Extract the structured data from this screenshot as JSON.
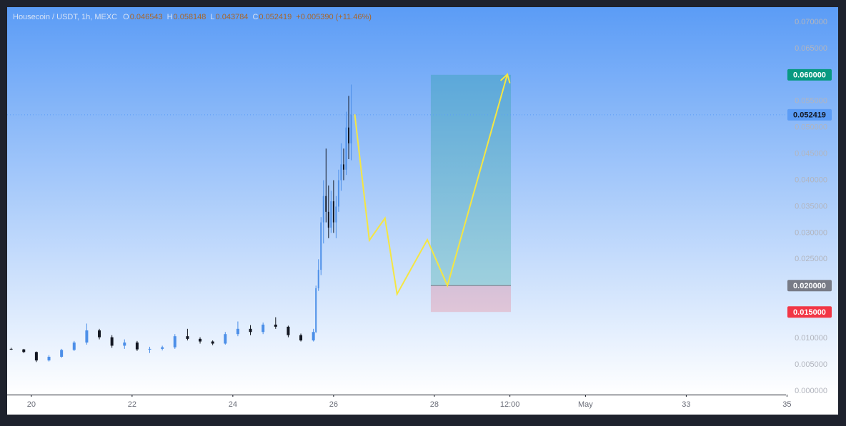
{
  "chart_data": {
    "type": "candlestick",
    "header": {
      "symbol": "Housecoin / USDT, 1h, MEXC",
      "fields": [
        {
          "key": "O",
          "value": "0.046543"
        },
        {
          "key": "H",
          "value": "0.058148"
        },
        {
          "key": "L",
          "value": "0.043784"
        },
        {
          "key": "C",
          "value": "0.052419"
        }
      ],
      "change": "+0.005390 (+11.46%)"
    },
    "x": [
      19.6,
      19.85,
      20.1,
      20.35,
      20.6,
      20.85,
      21.1,
      21.35,
      21.6,
      21.85,
      22.1,
      22.35,
      22.6,
      22.85,
      23.1,
      23.35,
      23.6,
      23.85,
      24.1,
      24.35,
      24.6,
      24.85,
      25.1,
      25.35,
      25.6,
      25.65,
      25.7,
      25.75,
      25.8,
      25.85,
      25.9,
      25.95,
      26.0,
      26.05,
      26.1,
      26.15,
      26.2,
      26.25,
      26.3,
      26.35
    ],
    "open": [
      0.008,
      0.0079,
      0.0074,
      0.0058,
      0.0065,
      0.0078,
      0.0092,
      0.0115,
      0.0102,
      0.0086,
      0.0092,
      0.0079,
      0.008,
      0.0083,
      0.0104,
      0.0099,
      0.0094,
      0.009,
      0.0108,
      0.0118,
      0.0112,
      0.0126,
      0.0122,
      0.0106,
      0.0096,
      0.0112,
      0.0195,
      0.023,
      0.032,
      0.037,
      0.034,
      0.031,
      0.036,
      0.032,
      0.035,
      0.04,
      0.043,
      0.042,
      0.05,
      0.047
    ],
    "high": [
      0.0082,
      0.008,
      0.0075,
      0.0068,
      0.008,
      0.0095,
      0.0128,
      0.0118,
      0.0106,
      0.0098,
      0.0095,
      0.0084,
      0.0086,
      0.0108,
      0.0118,
      0.0102,
      0.0096,
      0.0112,
      0.0132,
      0.0125,
      0.013,
      0.014,
      0.0124,
      0.0109,
      0.0118,
      0.02,
      0.025,
      0.033,
      0.04,
      0.046,
      0.039,
      0.038,
      0.04,
      0.037,
      0.042,
      0.047,
      0.046,
      0.053,
      0.056,
      0.058148
    ],
    "low": [
      0.0078,
      0.0072,
      0.0055,
      0.0056,
      0.0063,
      0.0076,
      0.0088,
      0.0098,
      0.0082,
      0.008,
      0.0076,
      0.0072,
      0.0077,
      0.008,
      0.0096,
      0.009,
      0.0087,
      0.0088,
      0.0104,
      0.0106,
      0.0108,
      0.0118,
      0.0102,
      0.0094,
      0.0094,
      0.011,
      0.019,
      0.022,
      0.028,
      0.032,
      0.029,
      0.03,
      0.03,
      0.029,
      0.034,
      0.038,
      0.04,
      0.041,
      0.044,
      0.043784
    ],
    "close": [
      0.0079,
      0.0074,
      0.0058,
      0.0065,
      0.0078,
      0.0092,
      0.0115,
      0.0102,
      0.0086,
      0.0092,
      0.0079,
      0.008,
      0.0083,
      0.0104,
      0.0099,
      0.0094,
      0.009,
      0.0108,
      0.0118,
      0.0112,
      0.0126,
      0.0122,
      0.0106,
      0.0096,
      0.0112,
      0.0195,
      0.023,
      0.032,
      0.037,
      0.034,
      0.031,
      0.036,
      0.032,
      0.035,
      0.04,
      0.043,
      0.042,
      0.05,
      0.047,
      0.052419
    ],
    "up_color": "#4c8fe8",
    "down_color": "#131722",
    "xlim": [
      19.52,
      34.98
    ],
    "ylim": [
      -0.00068,
      0.07284
    ],
    "xticks": [
      20,
      22,
      24,
      26,
      28,
      {
        "value": 29.5,
        "label": "12:00"
      },
      {
        "value": 31,
        "label": "May"
      },
      33,
      35
    ],
    "yticks": [
      {
        "value": 0,
        "label": "0.000000"
      },
      {
        "value": 0.005,
        "label": "0.005000"
      },
      {
        "value": 0.01,
        "label": "0.010000"
      },
      {
        "value": 0.015,
        "label": "0.015000"
      },
      {
        "value": 0.02,
        "label": "0.020000"
      },
      {
        "value": 0.025,
        "label": "0.025000"
      },
      {
        "value": 0.03,
        "label": "0.030000"
      },
      {
        "value": 0.035,
        "label": "0.035000"
      },
      {
        "value": 0.04,
        "label": "0.040000"
      },
      {
        "value": 0.045,
        "label": "0.045000"
      },
      {
        "value": 0.05,
        "label": "0.050000"
      },
      {
        "value": 0.055,
        "label": "0.055000"
      },
      {
        "value": 0.06,
        "label": "0.060000"
      },
      {
        "value": 0.065,
        "label": "0.065000"
      },
      {
        "value": 0.07,
        "label": "0.070000"
      }
    ],
    "forecast": {
      "color": "#f5e642",
      "x": [
        26.42,
        26.71,
        27.02,
        27.26,
        27.86,
        28.26,
        29.45
      ],
      "values": [
        0.0525,
        0.0286,
        0.0328,
        0.0184,
        0.0287,
        0.02,
        0.0601
      ]
    },
    "position": {
      "x": [
        27.93,
        29.52
      ],
      "target": {
        "value": 0.06,
        "label": "0.060000",
        "color": "#089981"
      },
      "entry": {
        "value": 0.02,
        "label": "0.020000",
        "color": "#787b86"
      },
      "stop": {
        "value": 0.015,
        "label": "0.015000",
        "color": "#f23645"
      }
    },
    "last_price": {
      "value": 0.052419,
      "label": "0.052419",
      "color": "#5b9cf6"
    }
  }
}
